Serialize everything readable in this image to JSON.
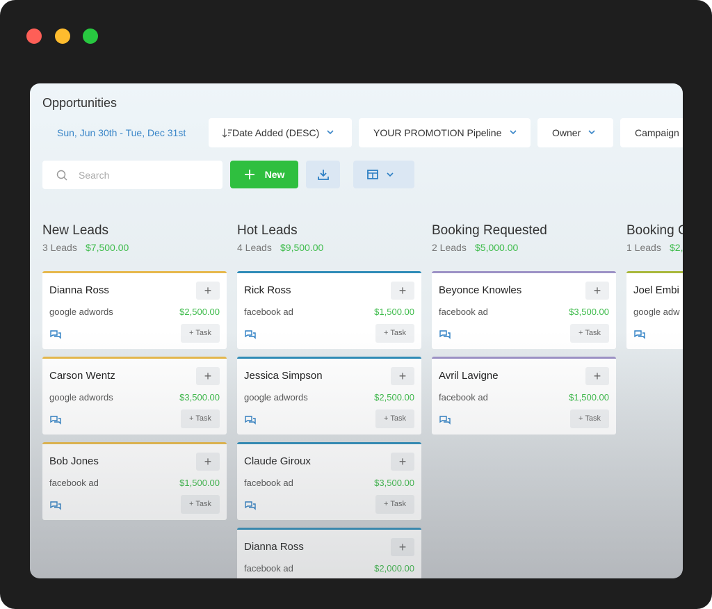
{
  "header": {
    "title": "Opportunities",
    "date_range": "Sun, Jun 30th - Tue, Dec 31st"
  },
  "filters": [
    "Date Added (DESC)",
    "YOUR PROMOTION Pipeline",
    "Owner",
    "Campaign"
  ],
  "toolbar": {
    "search_placeholder": "Search",
    "new_button": "New"
  },
  "task_button": "+ Task",
  "columns": [
    {
      "title": "New Leads",
      "count": "3 Leads",
      "total": "$7,500.00",
      "color": "#e6b84c",
      "cards": [
        {
          "name": "Dianna Ross",
          "source": "google adwords",
          "value": "$2,500.00"
        },
        {
          "name": "Carson Wentz",
          "source": "google adwords",
          "value": "$3,500.00"
        },
        {
          "name": "Bob Jones",
          "source": "facebook ad",
          "value": "$1,500.00"
        }
      ]
    },
    {
      "title": "Hot Leads",
      "count": "4 Leads",
      "total": "$9,500.00",
      "color": "#2f8cb8",
      "cards": [
        {
          "name": "Rick Ross",
          "source": "facebook ad",
          "value": "$1,500.00"
        },
        {
          "name": "Jessica Simpson",
          "source": "google adwords",
          "value": "$2,500.00"
        },
        {
          "name": "Claude Giroux",
          "source": "facebook ad",
          "value": "$3,500.00"
        },
        {
          "name": "Dianna Ross",
          "source": "facebook ad",
          "value": "$2,000.00"
        }
      ]
    },
    {
      "title": "Booking Requested",
      "count": "2 Leads",
      "total": "$5,000.00",
      "color": "#9d92c6",
      "cards": [
        {
          "name": "Beyonce Knowles",
          "source": "facebook ad",
          "value": "$3,500.00"
        },
        {
          "name": "Avril Lavigne",
          "source": "facebook ad",
          "value": "$1,500.00"
        }
      ]
    },
    {
      "title": "Booking C",
      "count": "1 Leads",
      "total": "$2,",
      "color": "#a9b83c",
      "cards": [
        {
          "name": "Joel Embi",
          "source": "google adw"
        }
      ]
    }
  ]
}
